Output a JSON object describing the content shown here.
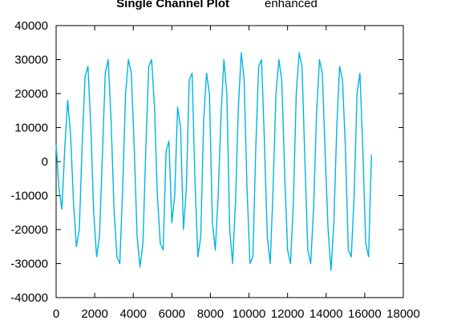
{
  "chart_data": {
    "type": "line",
    "title": "Single Channel Plot",
    "subtitle": "enhanced",
    "xlabel": "",
    "ylabel": "",
    "xlim": [
      0,
      18000
    ],
    "ylim": [
      -40000,
      40000
    ],
    "xticks": [
      0,
      2000,
      4000,
      6000,
      8000,
      10000,
      12000,
      14000,
      16000,
      18000
    ],
    "yticks": [
      -40000,
      -30000,
      -20000,
      -10000,
      0,
      10000,
      20000,
      30000,
      40000
    ],
    "grid": false,
    "legend": "none",
    "series": [
      {
        "color": "#00b4e4",
        "x": [
          0,
          150,
          300,
          450,
          600,
          750,
          900,
          1050,
          1200,
          1350,
          1500,
          1650,
          1800,
          1950,
          2100,
          2250,
          2400,
          2550,
          2700,
          2850,
          3000,
          3150,
          3300,
          3450,
          3600,
          3750,
          3900,
          4050,
          4200,
          4350,
          4500,
          4650,
          4800,
          4950,
          5100,
          5250,
          5400,
          5550,
          5700,
          5850,
          6000,
          6150,
          6300,
          6450,
          6600,
          6750,
          6900,
          7050,
          7200,
          7350,
          7500,
          7650,
          7800,
          7950,
          8100,
          8250,
          8400,
          8550,
          8700,
          8850,
          9000,
          9150,
          9300,
          9450,
          9600,
          9750,
          9900,
          10050,
          10200,
          10350,
          10500,
          10650,
          10800,
          10950,
          11100,
          11250,
          11400,
          11550,
          11700,
          11850,
          12000,
          12150,
          12300,
          12450,
          12600,
          12750,
          12900,
          13050,
          13200,
          13350,
          13500,
          13650,
          13800,
          13950,
          14100,
          14250,
          14400,
          14550,
          14700,
          14850,
          15000,
          15150,
          15300,
          15450,
          15600,
          15750,
          15900,
          16050,
          16200,
          16350
        ],
        "y": [
          5000,
          -8000,
          -14000,
          4000,
          18000,
          8000,
          -12000,
          -25000,
          -20000,
          5000,
          25000,
          28000,
          10000,
          -15000,
          -28000,
          -22000,
          2000,
          26000,
          30000,
          12000,
          -14000,
          -28000,
          -30000,
          -8000,
          20000,
          30000,
          26000,
          4000,
          -22000,
          -31000,
          -24000,
          4000,
          28000,
          30000,
          16000,
          -10000,
          -24000,
          -26000,
          3000,
          6000,
          -18000,
          -10000,
          16000,
          10000,
          -20000,
          -8000,
          24000,
          26000,
          -6000,
          -28000,
          -22000,
          12000,
          26000,
          20000,
          -18000,
          -26000,
          -10000,
          14000,
          30000,
          20000,
          -20000,
          -30000,
          -12000,
          16000,
          32000,
          24000,
          -8000,
          -30000,
          -28000,
          4000,
          28000,
          30000,
          6000,
          -22000,
          -30000,
          -8000,
          20000,
          30000,
          24000,
          -4000,
          -26000,
          -30000,
          -12000,
          20000,
          32000,
          28000,
          0,
          -26000,
          -30000,
          -14000,
          14000,
          30000,
          26000,
          2000,
          -20000,
          -32000,
          -18000,
          10000,
          28000,
          24000,
          4000,
          -26000,
          -28000,
          -10000,
          20000,
          26000,
          4000,
          -24000,
          -28000,
          2000
        ]
      }
    ]
  }
}
